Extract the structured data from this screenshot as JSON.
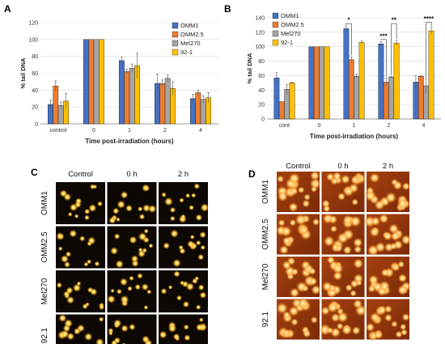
{
  "panel_letters": {
    "a": "A",
    "b": "B",
    "c": "C",
    "d": "D"
  },
  "colors": {
    "OMM1": "#4472c4",
    "OMM2.5": "#ed7d31",
    "Mel270": "#a5a5a5",
    "92-1": "#ffc000",
    "grid": "#d9d9d9",
    "axis": "#808080"
  },
  "chart_data": [
    {
      "panel": "A",
      "type": "bar",
      "xlabel": "Time post-irradiation (hours)",
      "ylabel": "% tail DNA",
      "ylim": [
        0,
        120
      ],
      "yticks": [
        0,
        20,
        40,
        60,
        80,
        100,
        120
      ],
      "grid": true,
      "legend_position": "right",
      "categories": [
        "control",
        "0",
        "1",
        "2",
        "4"
      ],
      "series": [
        {
          "name": "OMM1",
          "color": "#4472c4",
          "values": [
            23,
            100,
            75,
            48,
            30
          ],
          "errors": [
            5,
            0,
            4,
            11,
            5
          ]
        },
        {
          "name": "OMM2.5",
          "color": "#ed7d31",
          "values": [
            45,
            100,
            62,
            48,
            37
          ],
          "errors": [
            6,
            0,
            3,
            4,
            3
          ]
        },
        {
          "name": "Mel270",
          "color": "#a5a5a5",
          "values": [
            22,
            100,
            66,
            54,
            29
          ],
          "errors": [
            4,
            0,
            5,
            4,
            4
          ]
        },
        {
          "name": "92-1",
          "color": "#ffc000",
          "values": [
            27,
            100,
            69,
            42,
            31
          ],
          "errors": [
            9,
            0,
            15,
            8,
            6
          ]
        }
      ]
    },
    {
      "panel": "B",
      "type": "bar",
      "xlabel": "Time post-irradiation (hours)",
      "ylabel": "% tail DNA",
      "ylim": [
        0,
        140
      ],
      "yticks": [
        0,
        20,
        40,
        60,
        80,
        100,
        120,
        140
      ],
      "grid": true,
      "legend_position": "top-left",
      "categories": [
        "cont",
        "0",
        "1",
        "2",
        "4"
      ],
      "series": [
        {
          "name": "OMM1",
          "color": "#4472c4",
          "values": [
            57,
            100,
            125,
            104,
            51
          ],
          "errors": [
            7,
            0,
            3,
            3,
            9
          ]
        },
        {
          "name": "OMM2.5",
          "color": "#ed7d31",
          "values": [
            24,
            100,
            82,
            51,
            59
          ],
          "errors": [
            0,
            0,
            4,
            6,
            1
          ]
        },
        {
          "name": "Mel270",
          "color": "#a5a5a5",
          "values": [
            41,
            100,
            59,
            58,
            46
          ],
          "errors": [
            7,
            0,
            3,
            1,
            10
          ]
        },
        {
          "name": "92-1",
          "color": "#ffc000",
          "values": [
            50,
            100,
            106,
            105,
            122
          ],
          "errors": [
            1,
            0,
            2,
            3,
            5
          ]
        }
      ],
      "significance": [
        {
          "category": "1",
          "label": "*"
        },
        {
          "category": "2",
          "label": "***"
        },
        {
          "category": "2",
          "label": "**"
        },
        {
          "category": "4",
          "label": "****"
        }
      ]
    }
  ],
  "panel_c": {
    "column_labels": [
      "Control",
      "0 h",
      "2 h"
    ],
    "row_labels": [
      "OMM1",
      "OMM2.5",
      "Mel270",
      "92.1"
    ]
  },
  "panel_d": {
    "column_labels": [
      "Control",
      "0 h",
      "2 h"
    ],
    "row_labels": [
      "OMM1",
      "OMM2.5",
      "Mel270",
      "92.1"
    ]
  }
}
